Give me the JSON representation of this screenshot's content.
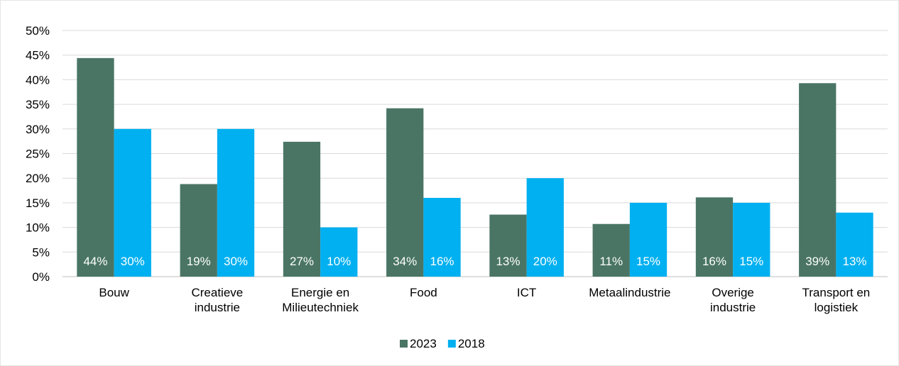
{
  "chart_data": {
    "type": "bar",
    "categories": [
      "Bouw",
      "Creatieve industrie",
      "Energie en Milieutechniek",
      "Food",
      "ICT",
      "Metaalindustrie",
      "Overige industrie",
      "Transport en logistiek"
    ],
    "series": [
      {
        "name": "2023",
        "color": "#4a7565",
        "values": [
          44.4,
          18.8,
          27.4,
          34.2,
          12.6,
          10.7,
          16.1,
          39.3
        ],
        "value_labels": [
          "44%",
          "19%",
          "27%",
          "34%",
          "13%",
          "11%",
          "16%",
          "39%"
        ]
      },
      {
        "name": "2018",
        "color": "#00b0f0",
        "values": [
          30,
          30,
          10,
          16,
          20,
          15,
          15,
          13
        ],
        "value_labels": [
          "30%",
          "30%",
          "10%",
          "16%",
          "20%",
          "15%",
          "15%",
          "13%"
        ]
      }
    ],
    "ylim": [
      0,
      50
    ],
    "yticks": [
      {
        "value": 0,
        "label": "0%"
      },
      {
        "value": 5,
        "label": "5%"
      },
      {
        "value": 10,
        "label": "10%"
      },
      {
        "value": 15,
        "label": "15%"
      },
      {
        "value": 20,
        "label": "20%"
      },
      {
        "value": 25,
        "label": "25%"
      },
      {
        "value": 30,
        "label": "30%"
      },
      {
        "value": 35,
        "label": "35%"
      },
      {
        "value": 40,
        "label": "40%"
      },
      {
        "value": 45,
        "label": "45%"
      },
      {
        "value": 50,
        "label": "50%"
      }
    ],
    "grid": true,
    "legend": "bottom"
  }
}
